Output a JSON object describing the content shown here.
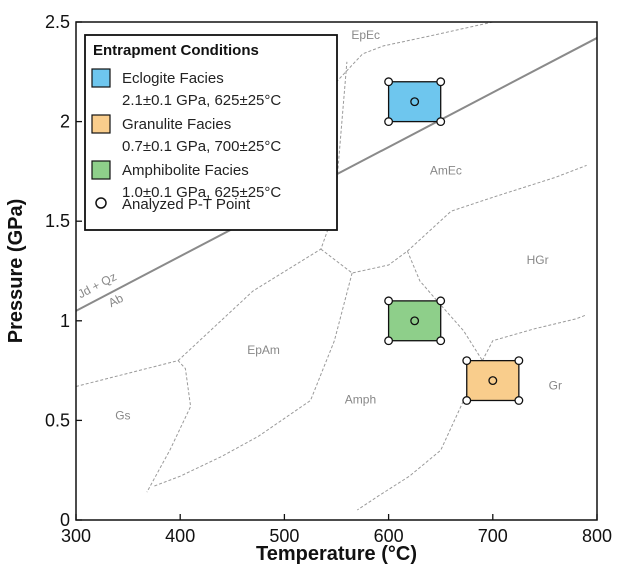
{
  "chart_data": {
    "type": "scatter",
    "xlabel": "Temperature (°C)",
    "ylabel": "Pressure (GPa)",
    "xlim": [
      300,
      800
    ],
    "ylim": [
      0,
      2.5
    ],
    "xticks": [
      "300",
      "400",
      "500",
      "600",
      "700",
      "800"
    ],
    "yticks": [
      "0",
      "0.5",
      "1",
      "1.5",
      "2",
      "2.5"
    ],
    "grid": false,
    "legend": {
      "title": "Entrapment Conditions",
      "placement": "top-left",
      "entries": [
        {
          "label": "Eclogite Facies",
          "detail": "2.1±0.1 GPa, 625±25°C",
          "color": "#6ec6ee"
        },
        {
          "label": "Granulite Facies",
          "detail": "0.7±0.1 GPa, 700±25°C",
          "color": "#f9cd8c"
        },
        {
          "label": "Amphibolite Facies",
          "detail": "1.0±0.1 GPa, 625±25°C",
          "color": "#8ecf8a"
        },
        {
          "label": "Analyzed P-T Point",
          "detail": "",
          "color": ""
        }
      ]
    },
    "conditions": [
      {
        "name": "Eclogite Facies",
        "T": 625,
        "P": 2.1,
        "T_err": 25,
        "P_err": 0.1,
        "color": "#6ec6ee"
      },
      {
        "name": "Granulite Facies",
        "T": 700,
        "P": 0.7,
        "T_err": 25,
        "P_err": 0.1,
        "color": "#f9cd8c"
      },
      {
        "name": "Amphibolite Facies",
        "T": 625,
        "P": 1.0,
        "T_err": 25,
        "P_err": 0.1,
        "color": "#8ecf8a"
      }
    ],
    "reaction_line": {
      "points": [
        [
          300,
          1.05
        ],
        [
          800,
          2.42
        ]
      ]
    },
    "reaction_labels": [
      "Jd + Qz",
      "Ab"
    ],
    "facies_boundaries": [
      [
        [
          300,
          0.67
        ],
        [
          398,
          0.8
        ],
        [
          405,
          0.76
        ],
        [
          410,
          0.57
        ],
        [
          390,
          0.35
        ],
        [
          368,
          0.14
        ]
      ],
      [
        [
          398,
          0.8
        ],
        [
          470,
          1.15
        ],
        [
          535,
          1.36
        ],
        [
          548,
          1.55
        ],
        [
          560,
          2.3
        ]
      ],
      [
        [
          535,
          1.36
        ],
        [
          565,
          1.24
        ],
        [
          600,
          1.28
        ],
        [
          618,
          1.35
        ]
      ],
      [
        [
          618,
          1.35
        ],
        [
          660,
          1.55
        ],
        [
          700,
          1.62
        ],
        [
          760,
          1.72
        ],
        [
          790,
          1.78
        ]
      ],
      [
        [
          565,
          1.24
        ],
        [
          548,
          0.9
        ],
        [
          525,
          0.6
        ],
        [
          475,
          0.42
        ],
        [
          440,
          0.32
        ],
        [
          400,
          0.22
        ],
        [
          375,
          0.17
        ]
      ],
      [
        [
          618,
          1.35
        ],
        [
          630,
          1.2
        ],
        [
          650,
          1.08
        ],
        [
          672,
          0.95
        ],
        [
          690,
          0.8
        ]
      ],
      [
        [
          690,
          0.8
        ],
        [
          700,
          0.9
        ],
        [
          740,
          0.96
        ],
        [
          780,
          1.01
        ],
        [
          790,
          1.03
        ]
      ],
      [
        [
          690,
          0.8
        ],
        [
          672,
          0.6
        ],
        [
          650,
          0.35
        ],
        [
          620,
          0.22
        ],
        [
          590,
          0.12
        ],
        [
          570,
          0.05
        ]
      ],
      [
        [
          505,
          2.05
        ],
        [
          550,
          2.2
        ],
        [
          575,
          2.34
        ],
        [
          595,
          2.38
        ],
        [
          640,
          2.43
        ],
        [
          700,
          2.5
        ]
      ]
    ],
    "facies_labels": [
      {
        "text": "EpEc",
        "T": 578,
        "P": 2.43
      },
      {
        "text": "AmEc",
        "T": 655,
        "P": 1.75
      },
      {
        "text": "HGr",
        "T": 743,
        "P": 1.3
      },
      {
        "text": "EpAm",
        "T": 480,
        "P": 0.85
      },
      {
        "text": "Amph",
        "T": 573,
        "P": 0.6
      },
      {
        "text": "Gr",
        "T": 760,
        "P": 0.67
      },
      {
        "text": "Gs",
        "T": 345,
        "P": 0.52
      }
    ]
  }
}
